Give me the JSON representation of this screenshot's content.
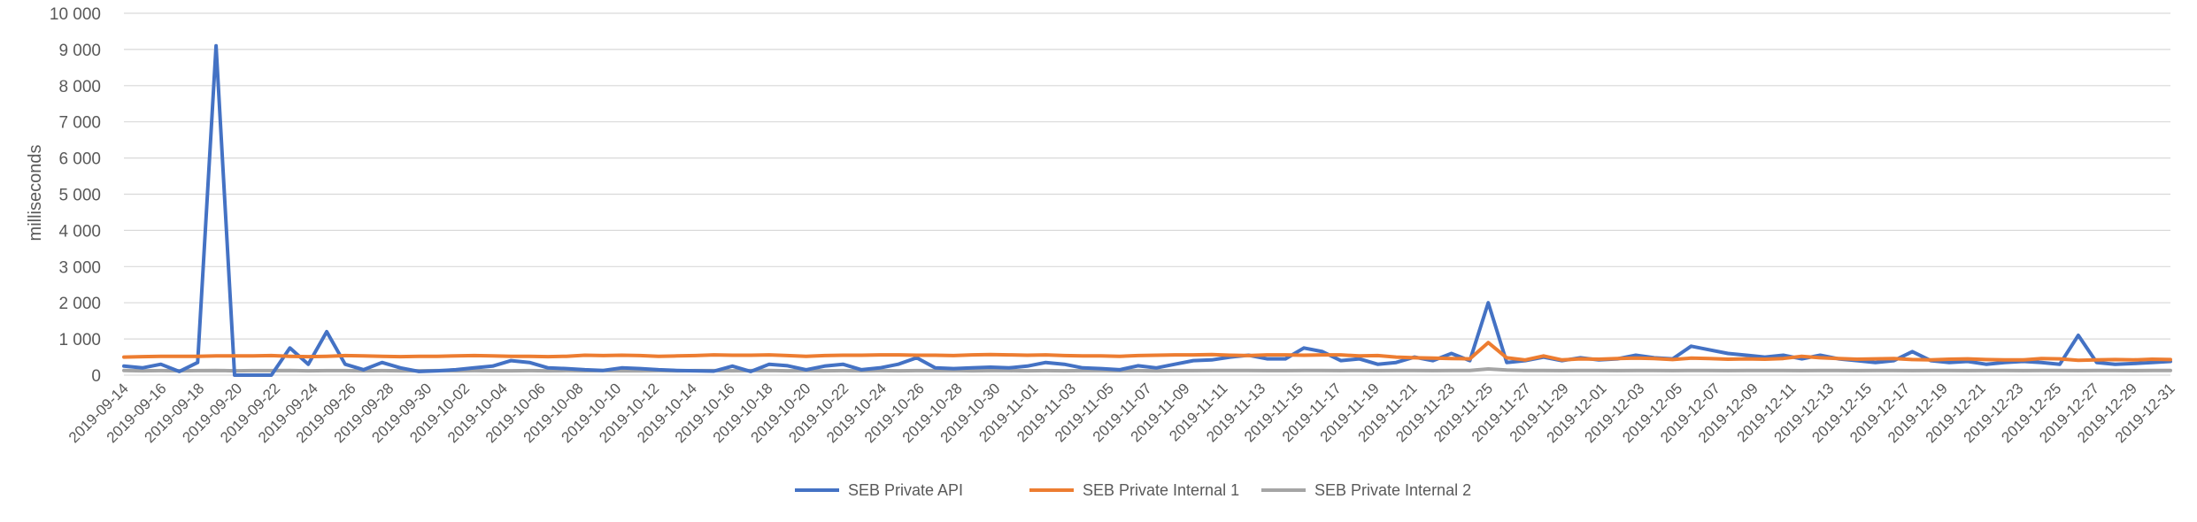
{
  "chart_data": {
    "type": "line",
    "title": "",
    "xlabel": "",
    "ylabel": "milliseconds",
    "ylim": [
      0,
      10000
    ],
    "yticks": [
      "0",
      "1 000",
      "2 000",
      "3 000",
      "4 000",
      "5 000",
      "6 000",
      "7 000",
      "8 000",
      "9 000",
      "10 000"
    ],
    "x_start": "2019-09-14",
    "x_end": "2019-12-31",
    "xtick_labels": [
      "2019-09-14",
      "2019-09-16",
      "2019-09-18",
      "2019-09-20",
      "2019-09-22",
      "2019-09-24",
      "2019-09-26",
      "2019-09-28",
      "2019-09-30",
      "2019-10-02",
      "2019-10-04",
      "2019-10-06",
      "2019-10-08",
      "2019-10-10",
      "2019-10-12",
      "2019-10-14",
      "2019-10-16",
      "2019-10-18",
      "2019-10-20",
      "2019-10-22",
      "2019-10-24",
      "2019-10-26",
      "2019-10-28",
      "2019-10-30",
      "2019-11-01",
      "2019-11-03",
      "2019-11-05",
      "2019-11-07",
      "2019-11-09",
      "2019-11-11",
      "2019-11-13",
      "2019-11-15",
      "2019-11-17",
      "2019-11-19",
      "2019-11-21",
      "2019-11-23",
      "2019-11-25",
      "2019-11-27",
      "2019-11-29",
      "2019-12-01",
      "2019-12-03",
      "2019-12-05",
      "2019-12-07",
      "2019-12-09",
      "2019-12-11",
      "2019-12-13",
      "2019-12-15",
      "2019-12-17",
      "2019-12-19",
      "2019-12-21",
      "2019-12-23",
      "2019-12-25",
      "2019-12-27",
      "2019-12-29",
      "2019-12-31"
    ],
    "grid": true,
    "legend_position": "bottom",
    "series": [
      {
        "name": "SEB Private API",
        "color": "#4472C4",
        "values": [
          250,
          200,
          300,
          100,
          350,
          9100,
          0,
          0,
          0,
          750,
          300,
          1200,
          300,
          150,
          350,
          200,
          100,
          120,
          150,
          200,
          250,
          400,
          350,
          200,
          180,
          150,
          130,
          200,
          180,
          150,
          130,
          120,
          110,
          250,
          100,
          300,
          260,
          150,
          250,
          300,
          150,
          200,
          300,
          480,
          200,
          180,
          200,
          220,
          200,
          250,
          350,
          300,
          200,
          180,
          150,
          260,
          200,
          300,
          400,
          420,
          500,
          550,
          450,
          450,
          750,
          650,
          400,
          450,
          300,
          350,
          500,
          400,
          600,
          400,
          2000,
          350,
          400,
          500,
          400,
          480,
          420,
          450,
          550,
          480,
          450,
          800,
          700,
          600,
          550,
          500,
          550,
          450,
          550,
          450,
          400,
          350,
          400,
          650,
          400,
          350,
          380,
          300,
          350,
          380,
          350,
          300,
          1100,
          350,
          300,
          320,
          350,
          380
        ]
      },
      {
        "name": "SEB Private Internal 1",
        "color": "#ED7D31",
        "values": [
          500,
          510,
          520,
          520,
          520,
          530,
          530,
          530,
          540,
          520,
          510,
          520,
          540,
          530,
          520,
          510,
          520,
          520,
          530,
          540,
          530,
          520,
          520,
          510,
          520,
          550,
          540,
          550,
          540,
          520,
          530,
          540,
          560,
          550,
          550,
          560,
          540,
          520,
          540,
          550,
          550,
          560,
          560,
          550,
          550,
          540,
          560,
          570,
          560,
          550,
          560,
          540,
          530,
          530,
          520,
          540,
          550,
          560,
          560,
          570,
          550,
          540,
          560,
          560,
          550,
          560,
          560,
          530,
          540,
          500,
          480,
          470,
          460,
          450,
          900,
          480,
          420,
          530,
          420,
          450,
          440,
          460,
          470,
          460,
          430,
          470,
          460,
          440,
          450,
          440,
          460,
          520,
          480,
          460,
          440,
          450,
          460,
          430,
          420,
          440,
          450,
          430,
          420,
          420,
          460,
          450,
          410,
          420,
          430,
          420,
          440,
          430
        ]
      },
      {
        "name": "SEB Private Internal 2",
        "color": "#A5A5A5",
        "values": [
          130,
          120,
          125,
          120,
          125,
          130,
          120,
          125,
          125,
          130,
          120,
          125,
          125,
          120,
          125,
          120,
          120,
          125,
          120,
          125,
          120,
          120,
          125,
          120,
          125,
          120,
          125,
          120,
          120,
          125,
          120,
          125,
          125,
          120,
          125,
          130,
          120,
          125,
          120,
          125,
          120,
          125,
          120,
          125,
          125,
          130,
          120,
          125,
          125,
          120,
          125,
          120,
          125,
          125,
          120,
          125,
          120,
          125,
          125,
          130,
          130,
          130,
          125,
          125,
          130,
          130,
          125,
          130,
          125,
          130,
          130,
          125,
          130,
          130,
          170,
          140,
          130,
          130,
          125,
          130,
          130,
          125,
          130,
          130,
          125,
          130,
          130,
          125,
          130,
          130,
          130,
          125,
          130,
          130,
          125,
          130,
          130,
          125,
          130,
          130,
          125,
          130,
          130,
          125,
          130,
          130,
          125,
          130,
          130,
          125,
          130,
          130
        ]
      }
    ]
  }
}
